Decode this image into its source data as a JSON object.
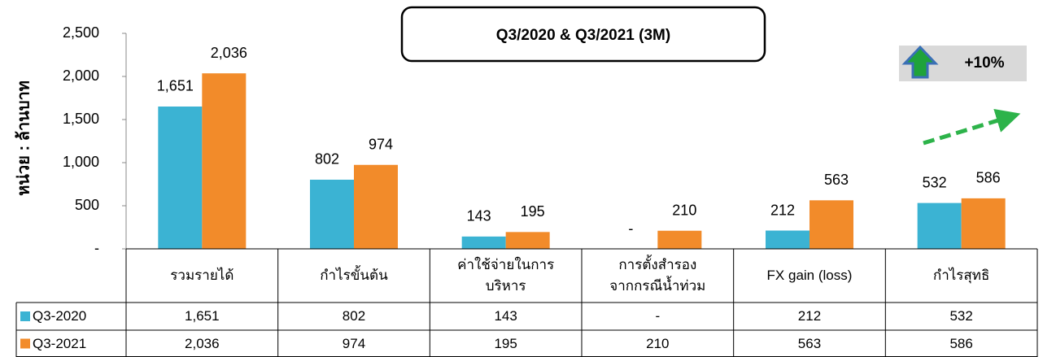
{
  "chart_data": {
    "type": "bar",
    "title": "Q3/2020 & Q3/2021 (3M)",
    "y_label": "หน่วย : ล้านบาท",
    "annotation": "+10%",
    "categories": [
      "รวมรายได้",
      "กำไรขั้นต้น",
      "ค่าใช้จ่ายในการ\nบริหาร",
      "การตั้งสำรอง\nจากกรณีน้ำท่วม",
      "FX gain (loss)",
      "กำไรสุทธิ"
    ],
    "series": [
      {
        "name": "Q3-2020",
        "color": "#3bb3d3",
        "values": [
          1651,
          802,
          143,
          0,
          212,
          532
        ],
        "value_labels": [
          "1,651",
          "802",
          "143",
          "-",
          "212",
          "532"
        ]
      },
      {
        "name": "Q3-2021",
        "color": "#f28b2a",
        "values": [
          2036,
          974,
          195,
          210,
          563,
          586
        ],
        "value_labels": [
          "2,036",
          "974",
          "195",
          "210",
          "563",
          "586"
        ]
      }
    ],
    "ylim": [
      0,
      2500
    ],
    "yticks": [
      {
        "value": 0,
        "label": "-"
      },
      {
        "value": 500,
        "label": "500"
      },
      {
        "value": 1000,
        "label": "1,000"
      },
      {
        "value": 1500,
        "label": "1,500"
      },
      {
        "value": 2000,
        "label": "2,000"
      },
      {
        "value": 2500,
        "label": "2,500"
      }
    ]
  }
}
